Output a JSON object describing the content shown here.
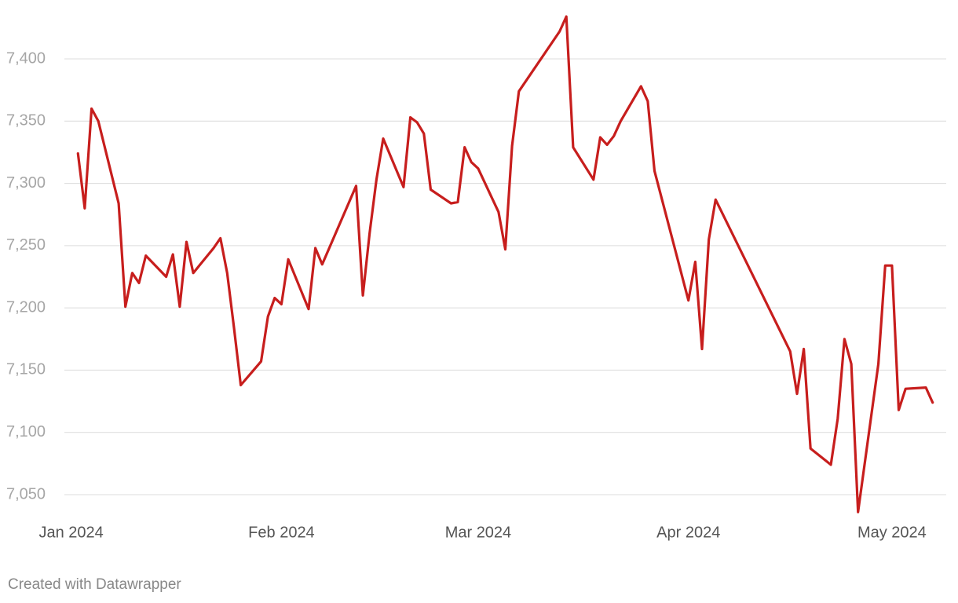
{
  "chart_data": {
    "type": "line",
    "credit": "Created with Datawrapper",
    "x": [
      1,
      2,
      3,
      4,
      7,
      8,
      9,
      10,
      11,
      14,
      15,
      16,
      17,
      18,
      21,
      22,
      23,
      24,
      25,
      28,
      29,
      30,
      31,
      32,
      35,
      36,
      37,
      42,
      43,
      44,
      45,
      46,
      49,
      50,
      51,
      52,
      53,
      56,
      57,
      58,
      59,
      60,
      63,
      64,
      65,
      66,
      72,
      73,
      74,
      77,
      78,
      79,
      80,
      81,
      84,
      85,
      86,
      91,
      92,
      93,
      94,
      95,
      106,
      107,
      108,
      109,
      112,
      113,
      114,
      115,
      116,
      119,
      120,
      121,
      122,
      123,
      126,
      127
    ],
    "series": [
      {
        "color": "#c71e1d",
        "values": [
          7324,
          7280,
          7360,
          7350,
          7284,
          7201,
          7228,
          7220,
          7242,
          7225,
          7243,
          7201,
          7253,
          7228,
          7248,
          7256,
          7228,
          7184,
          7138,
          7157,
          7193,
          7208,
          7203,
          7239,
          7199,
          7248,
          7235,
          7298,
          7210,
          7260,
          7303,
          7336,
          7297,
          7353,
          7349,
          7340,
          7295,
          7284,
          7285,
          7329,
          7317,
          7312,
          7277,
          7247,
          7330,
          7374,
          7422,
          7434,
          7329,
          7303,
          7337,
          7331,
          7338,
          7350,
          7378,
          7366,
          7310,
          7206,
          7237,
          7167,
          7255,
          7287,
          7165,
          7131,
          7167,
          7087,
          7074,
          7111,
          7175,
          7155,
          7036,
          7155,
          7234,
          7234,
          7118,
          7135,
          7136,
          7124
        ]
      }
    ],
    "xlim": [
      -1,
      129
    ],
    "xticks": [
      {
        "value": 0,
        "label": "Jan 2024"
      },
      {
        "value": 31,
        "label": "Feb 2024"
      },
      {
        "value": 60,
        "label": "Mar 2024"
      },
      {
        "value": 91,
        "label": "Apr 2024"
      },
      {
        "value": 121,
        "label": "May 2024"
      }
    ],
    "ylim": [
      7030,
      7440
    ],
    "yticks": [
      {
        "value": 7050,
        "label": "7,050"
      },
      {
        "value": 7100,
        "label": "7,100"
      },
      {
        "value": 7150,
        "label": "7,150"
      },
      {
        "value": 7200,
        "label": "7,200"
      },
      {
        "value": 7250,
        "label": "7,250"
      },
      {
        "value": 7300,
        "label": "7,300"
      },
      {
        "value": 7350,
        "label": "7,350"
      },
      {
        "value": 7400,
        "label": "7,400"
      }
    ],
    "grid": true
  }
}
